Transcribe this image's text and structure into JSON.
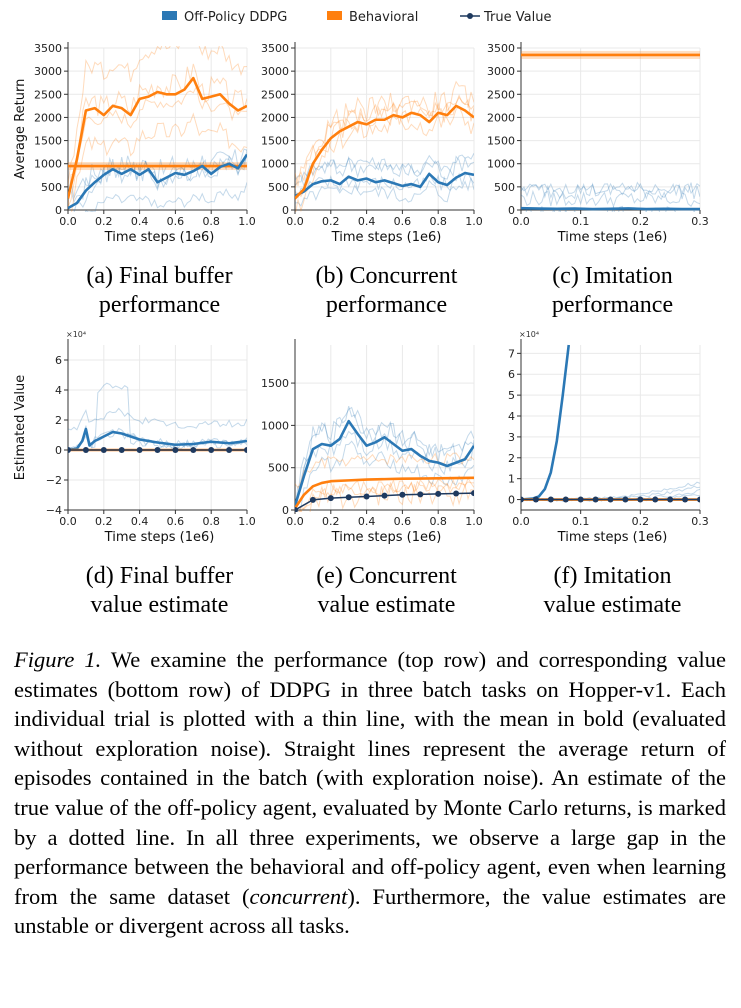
{
  "legend": [
    {
      "label": "Off-Policy DDPG",
      "color": "#2b78b5",
      "marker": "bar"
    },
    {
      "label": "Behavioral",
      "color": "#ff7f0e",
      "marker": "bar"
    },
    {
      "label": "True Value",
      "color": "#1f3a5f",
      "marker": "line-dot"
    }
  ],
  "caption": {
    "label": "Figure 1.",
    "text": "We examine the performance (top row) and corresponding value estimates (bottom row) of DDPG in three batch tasks on Hopper-v1. Each individual trial is plotted with a thin line, with the mean in bold (evaluated without exploration noise). Straight lines represent the average return of episodes contained in the batch (with exploration noise). An estimate of the true value of the off-policy agent, evaluated by Monte Carlo returns, is marked by a dotted line. In all three experiments, we observe a large gap in the performance between the behavioral and off-policy agent, even when learning from the same dataset (",
    "italic": "concurrent",
    "tail": "). Furthermore, the value estimates are unstable or divergent across all tasks."
  },
  "chart_data": [
    {
      "id": "a",
      "type": "line",
      "subtitle_lines": [
        "(a) Final buffer",
        "performance"
      ],
      "xlabel": "Time steps (1e6)",
      "ylabel": "Average Return",
      "xlim": [
        0,
        1.0
      ],
      "ylim": [
        0,
        3500
      ],
      "xticks": [
        0.0,
        0.2,
        0.4,
        0.6,
        0.8,
        1.0
      ],
      "xtick_labels": [
        "0.0",
        "0.2",
        "0.4",
        "0.6",
        "0.8",
        "1.0"
      ],
      "yticks": [
        0,
        500,
        1000,
        1500,
        2000,
        2500,
        3000,
        3500
      ],
      "ytick_labels": [
        "0",
        "500",
        "1000",
        "1500",
        "2000",
        "2500",
        "3000",
        "3500"
      ],
      "exponent": "",
      "series": [
        {
          "role": "Off-Policy DDPG",
          "x": [
            0.0,
            0.05,
            0.1,
            0.15,
            0.2,
            0.25,
            0.3,
            0.35,
            0.4,
            0.45,
            0.5,
            0.55,
            0.6,
            0.65,
            0.7,
            0.75,
            0.8,
            0.85,
            0.9,
            0.95,
            1.0
          ],
          "y": [
            40,
            150,
            420,
            600,
            760,
            880,
            780,
            880,
            760,
            880,
            600,
            700,
            800,
            760,
            840,
            950,
            780,
            930,
            1000,
            900,
            1200
          ]
        },
        {
          "role": "Behavioral",
          "x": [
            0.0,
            0.05,
            0.1,
            0.15,
            0.2,
            0.25,
            0.3,
            0.35,
            0.4,
            0.45,
            0.5,
            0.55,
            0.6,
            0.65,
            0.7,
            0.75,
            0.8,
            0.85,
            0.9,
            0.95,
            1.0
          ],
          "y": [
            250,
            1100,
            2150,
            2200,
            2050,
            2250,
            2200,
            2050,
            2400,
            2450,
            2550,
            2500,
            2500,
            2600,
            2850,
            2400,
            2450,
            2500,
            2300,
            2150,
            2250
          ]
        },
        {
          "role": "Behavioral (batch average)",
          "constant": 950
        }
      ]
    },
    {
      "id": "b",
      "type": "line",
      "subtitle_lines": [
        "(b) Concurrent",
        "performance"
      ],
      "xlabel": "Time steps (1e6)",
      "ylabel": "",
      "xlim": [
        0,
        1.0
      ],
      "ylim": [
        0,
        3500
      ],
      "xticks": [
        0.0,
        0.2,
        0.4,
        0.6,
        0.8,
        1.0
      ],
      "xtick_labels": [
        "0.0",
        "0.2",
        "0.4",
        "0.6",
        "0.8",
        "1.0"
      ],
      "yticks": [
        0,
        500,
        1000,
        1500,
        2000,
        2500,
        3000,
        3500
      ],
      "ytick_labels": [
        "0",
        "500",
        "1000",
        "1500",
        "2000",
        "2500",
        "3000",
        "3500"
      ],
      "exponent": "",
      "series": [
        {
          "role": "Off-Policy DDPG",
          "x": [
            0.0,
            0.05,
            0.1,
            0.15,
            0.2,
            0.25,
            0.3,
            0.35,
            0.4,
            0.45,
            0.5,
            0.55,
            0.6,
            0.65,
            0.7,
            0.75,
            0.8,
            0.85,
            0.9,
            0.95,
            1.0
          ],
          "y": [
            300,
            400,
            560,
            620,
            640,
            560,
            720,
            640,
            680,
            600,
            640,
            580,
            520,
            560,
            500,
            780,
            600,
            540,
            700,
            800,
            760
          ]
        },
        {
          "role": "Behavioral",
          "x": [
            0.0,
            0.05,
            0.1,
            0.15,
            0.2,
            0.25,
            0.3,
            0.35,
            0.4,
            0.45,
            0.5,
            0.55,
            0.6,
            0.65,
            0.7,
            0.75,
            0.8,
            0.85,
            0.9,
            0.95,
            1.0
          ],
          "y": [
            250,
            450,
            1000,
            1300,
            1550,
            1700,
            1800,
            1900,
            1850,
            1950,
            1950,
            2050,
            2000,
            2100,
            2050,
            1900,
            2100,
            2050,
            2250,
            2150,
            2000
          ]
        }
      ]
    },
    {
      "id": "c",
      "type": "line",
      "subtitle_lines": [
        "(c) Imitation",
        "performance"
      ],
      "xlabel": "Time steps (1e6)",
      "ylabel": "",
      "xlim": [
        0,
        0.3
      ],
      "ylim": [
        0,
        3500
      ],
      "xticks": [
        0.0,
        0.1,
        0.2,
        0.3
      ],
      "xtick_labels": [
        "0.0",
        "0.1",
        "0.2",
        "0.3"
      ],
      "yticks": [
        0,
        500,
        1000,
        1500,
        2000,
        2500,
        3000,
        3500
      ],
      "ytick_labels": [
        "0",
        "500",
        "1000",
        "1500",
        "2000",
        "2500",
        "3000",
        "3500"
      ],
      "exponent": "",
      "series": [
        {
          "role": "Off-Policy DDPG",
          "x": [
            0.0,
            0.03,
            0.06,
            0.09,
            0.12,
            0.15,
            0.18,
            0.21,
            0.24,
            0.27,
            0.3
          ],
          "y": [
            40,
            30,
            25,
            30,
            20,
            25,
            35,
            20,
            25,
            20,
            20
          ]
        },
        {
          "role": "Behavioral (batch average)",
          "constant": 3350
        }
      ]
    },
    {
      "id": "d",
      "type": "line",
      "subtitle_lines": [
        "(d) Final buffer",
        "value estimate"
      ],
      "xlabel": "Time steps (1e6)",
      "ylabel": "Estimated Value",
      "xlim": [
        0,
        1.0
      ],
      "ylim": [
        -4,
        7
      ],
      "xticks": [
        0.0,
        0.2,
        0.4,
        0.6,
        0.8,
        1.0
      ],
      "xtick_labels": [
        "0.0",
        "0.2",
        "0.4",
        "0.6",
        "0.8",
        "1.0"
      ],
      "yticks": [
        -4,
        -2,
        0,
        2,
        4,
        6
      ],
      "ytick_labels": [
        "−4",
        "−2",
        "0",
        "2",
        "4",
        "6"
      ],
      "exponent": "×10⁴",
      "series": [
        {
          "role": "Off-Policy DDPG",
          "x": [
            0.0,
            0.05,
            0.08,
            0.1,
            0.12,
            0.15,
            0.2,
            0.25,
            0.3,
            0.35,
            0.4,
            0.5,
            0.6,
            0.7,
            0.8,
            0.9,
            1.0
          ],
          "y": [
            0,
            0.1,
            0.6,
            1.4,
            0.3,
            0.6,
            0.9,
            1.2,
            1.1,
            0.9,
            0.7,
            0.5,
            0.35,
            0.4,
            0.55,
            0.45,
            0.6
          ]
        },
        {
          "role": "Behavioral",
          "x": [
            0.0,
            1.0
          ],
          "y": [
            0,
            0
          ]
        },
        {
          "role": "True Value",
          "x": [
            0.0,
            0.1,
            0.2,
            0.3,
            0.4,
            0.5,
            0.6,
            0.7,
            0.8,
            0.9,
            1.0
          ],
          "y": [
            0,
            0,
            0,
            0,
            0,
            0,
            0,
            0,
            0,
            0,
            0
          ]
        }
      ]
    },
    {
      "id": "e",
      "type": "line",
      "subtitle_lines": [
        "(e) Concurrent",
        "value estimate"
      ],
      "xlabel": "Time steps (1e6)",
      "ylabel": "",
      "xlim": [
        0,
        1.0
      ],
      "ylim": [
        0,
        1950
      ],
      "xticks": [
        0.0,
        0.2,
        0.4,
        0.6,
        0.8,
        1.0
      ],
      "xtick_labels": [
        "0.0",
        "0.2",
        "0.4",
        "0.6",
        "0.8",
        "1.0"
      ],
      "yticks": [
        0,
        500,
        1000,
        1500
      ],
      "ytick_labels": [
        "0",
        "500",
        "1000",
        "1500"
      ],
      "exponent": "",
      "series": [
        {
          "role": "Off-Policy DDPG",
          "x": [
            0.0,
            0.05,
            0.1,
            0.15,
            0.2,
            0.25,
            0.3,
            0.35,
            0.4,
            0.45,
            0.5,
            0.55,
            0.6,
            0.65,
            0.7,
            0.75,
            0.8,
            0.85,
            0.9,
            0.95,
            1.0
          ],
          "y": [
            50,
            400,
            720,
            780,
            760,
            840,
            1050,
            900,
            760,
            800,
            860,
            780,
            700,
            720,
            640,
            580,
            560,
            520,
            560,
            600,
            760
          ]
        },
        {
          "role": "Behavioral",
          "x": [
            0.0,
            0.05,
            0.1,
            0.15,
            0.2,
            0.3,
            0.4,
            0.5,
            0.6,
            0.7,
            0.8,
            0.9,
            1.0
          ],
          "y": [
            20,
            180,
            280,
            320,
            340,
            350,
            360,
            365,
            370,
            372,
            375,
            378,
            380
          ]
        },
        {
          "role": "True Value",
          "x": [
            0.0,
            0.1,
            0.2,
            0.3,
            0.4,
            0.5,
            0.6,
            0.7,
            0.8,
            0.9,
            1.0
          ],
          "y": [
            0,
            120,
            140,
            150,
            160,
            170,
            180,
            185,
            190,
            195,
            200
          ]
        }
      ]
    },
    {
      "id": "f",
      "type": "line",
      "subtitle_lines": [
        "(f) Imitation",
        "value estimate"
      ],
      "xlabel": "Time steps (1e6)",
      "ylabel": "",
      "xlim": [
        0,
        0.3
      ],
      "ylim": [
        -0.5,
        7.4
      ],
      "xticks": [
        0.0,
        0.1,
        0.2,
        0.3
      ],
      "xtick_labels": [
        "0.0",
        "0.1",
        "0.2",
        "0.3"
      ],
      "yticks": [
        0,
        1,
        2,
        3,
        4,
        5,
        6,
        7
      ],
      "ytick_labels": [
        "0",
        "1",
        "2",
        "3",
        "4",
        "5",
        "6",
        "7"
      ],
      "exponent": "×10⁴",
      "series": [
        {
          "role": "Off-Policy DDPG",
          "x": [
            0.0,
            0.02,
            0.03,
            0.04,
            0.05,
            0.06,
            0.07,
            0.08
          ],
          "y": [
            0,
            0.05,
            0.15,
            0.5,
            1.3,
            2.8,
            5.0,
            7.4
          ]
        },
        {
          "role": "Behavioral",
          "x": [
            0.0,
            0.3
          ],
          "y": [
            0,
            0
          ]
        },
        {
          "role": "True Value",
          "x": [
            0.0,
            0.025,
            0.05,
            0.075,
            0.1,
            0.125,
            0.15,
            0.175,
            0.2,
            0.225,
            0.25,
            0.275,
            0.3
          ],
          "y": [
            0,
            0,
            0,
            0,
            0,
            0,
            0,
            0,
            0,
            0,
            0,
            0,
            0
          ]
        }
      ]
    }
  ]
}
